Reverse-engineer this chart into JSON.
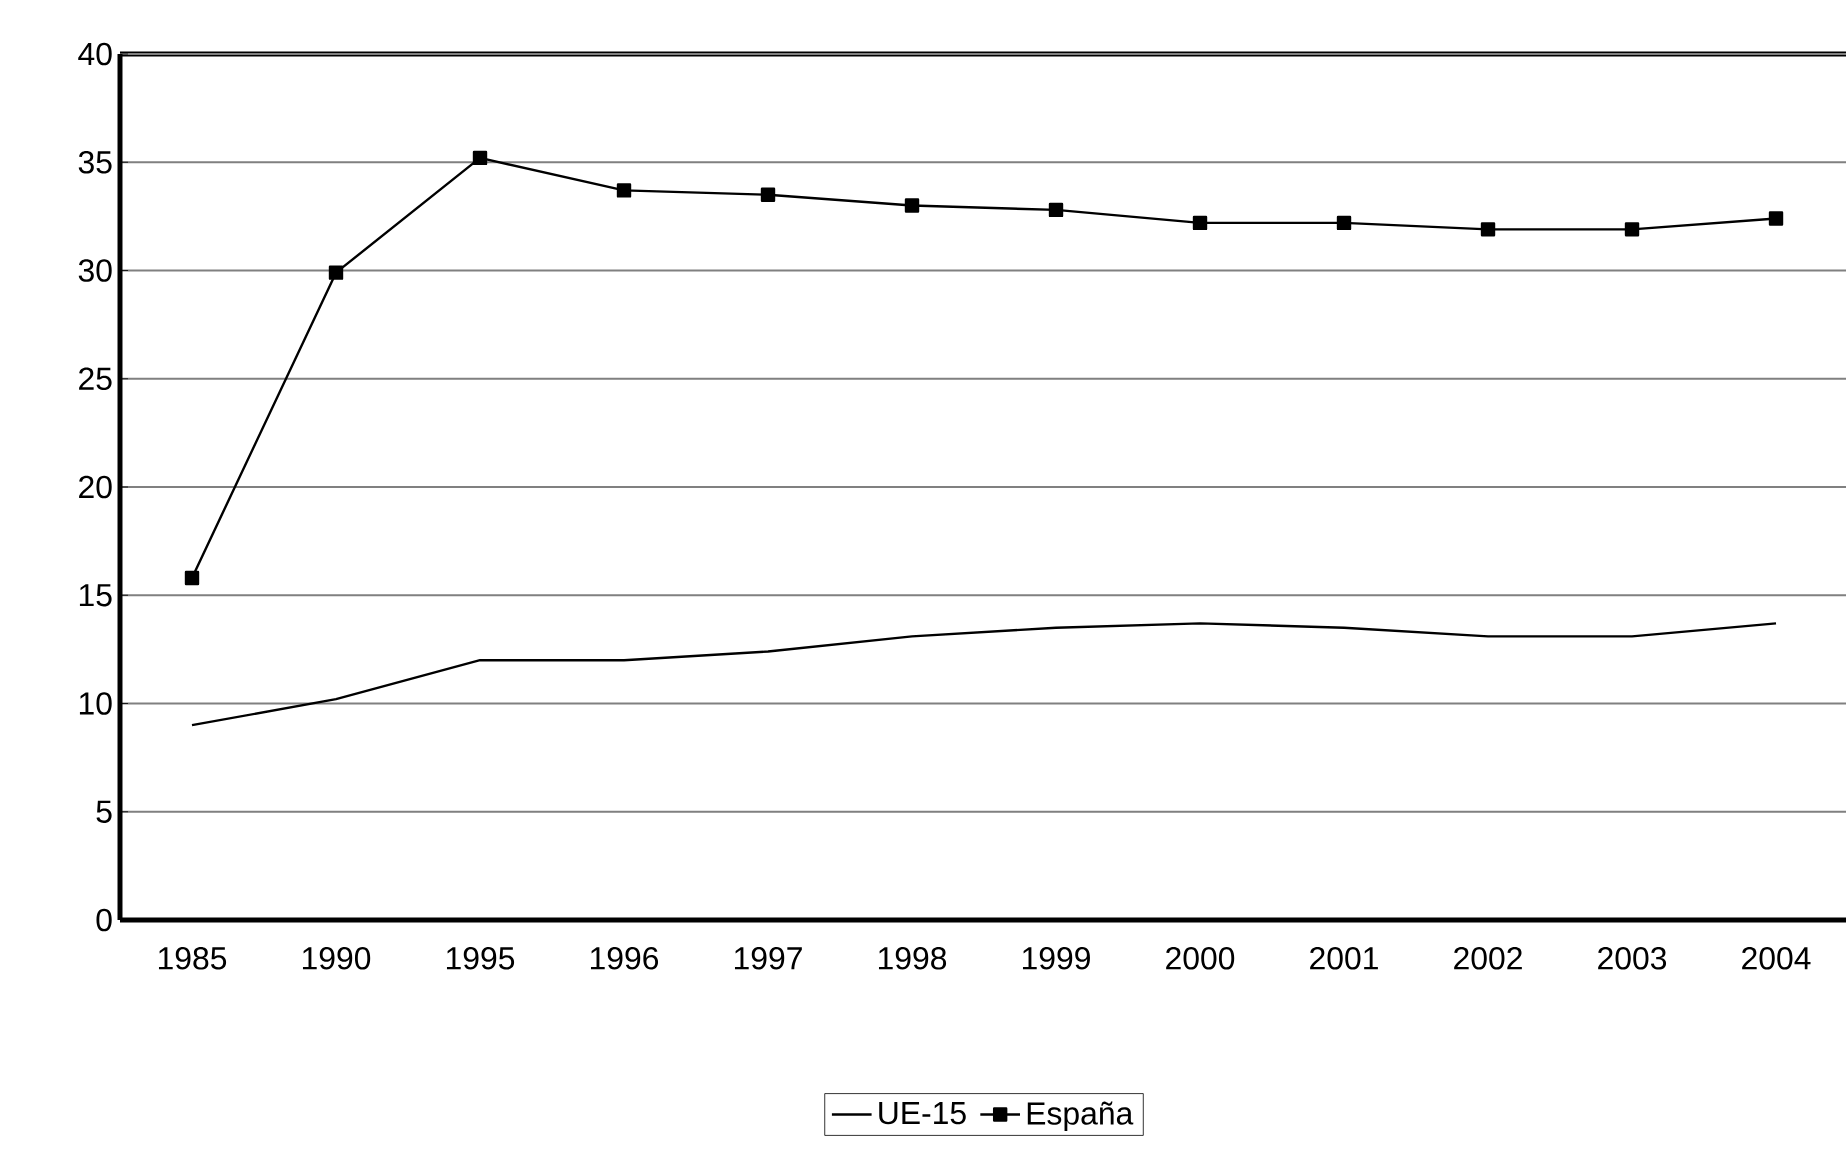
{
  "chart_data": {
    "type": "line",
    "categories": [
      "1985",
      "1990",
      "1995",
      "1996",
      "1997",
      "1998",
      "1999",
      "2000",
      "2001",
      "2002",
      "2003",
      "2004"
    ],
    "series": [
      {
        "name": "UE-15",
        "color": "#000000",
        "marker": "none",
        "values": [
          9.0,
          10.2,
          12.0,
          12.0,
          12.4,
          13.1,
          13.5,
          13.7,
          13.5,
          13.1,
          13.1,
          13.7
        ]
      },
      {
        "name": "España",
        "color": "#000000",
        "marker": "square",
        "values": [
          15.8,
          29.9,
          35.2,
          33.7,
          33.5,
          33.0,
          32.8,
          32.2,
          32.2,
          31.9,
          31.9,
          32.4
        ]
      }
    ],
    "ylim": [
      0,
      40
    ],
    "yticks": [
      0,
      5,
      10,
      15,
      20,
      25,
      30,
      35,
      40
    ],
    "grid": "y",
    "legend": "bottom",
    "line_style": "solid"
  }
}
